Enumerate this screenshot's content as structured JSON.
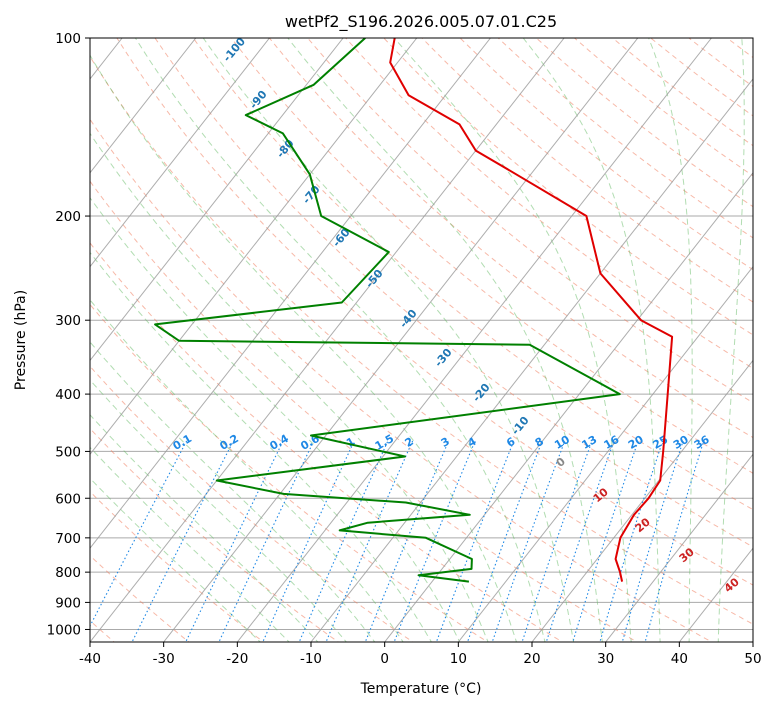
{
  "chart_data": {
    "type": "line",
    "title": "wetPf2_S196.2026.005.07.01.C25",
    "xlabel": "Temperature (°C)",
    "ylabel": "Pressure (hPa)",
    "xlim": [
      -40,
      50
    ],
    "ylim": [
      1050,
      100
    ],
    "x_ticks": [
      -40,
      -30,
      -20,
      -10,
      0,
      10,
      20,
      30,
      40,
      50
    ],
    "y_ticks": [
      100,
      200,
      300,
      400,
      500,
      600,
      700,
      800,
      900,
      1000
    ],
    "skew_factor": 0.785,
    "grid": true,
    "colors": {
      "temperature": "#e00000",
      "dewpoint": "#008000",
      "isotherm": "#999999",
      "isobar": "#aaaaaa",
      "dry_adiabat": "#f08060",
      "moist_adiabat": "#66bb66",
      "mixing_ratio": "#1e88e5",
      "isotherm_label": "#1f77b4",
      "wet_bulb_label": "#cc2222",
      "zero_label": "#888888"
    },
    "series": [
      {
        "name": "Temperature",
        "color": "#e00000",
        "points": [
          [
            25.8,
            830
          ],
          [
            24.5,
            800
          ],
          [
            22.5,
            760
          ],
          [
            20.9,
            700
          ],
          [
            20.5,
            660
          ],
          [
            20.3,
            640
          ],
          [
            20.5,
            600
          ],
          [
            20.2,
            560
          ],
          [
            17.5,
            500
          ],
          [
            12.0,
            400
          ],
          [
            6.5,
            320
          ],
          [
            0.5,
            300
          ],
          [
            -10.0,
            250
          ],
          [
            -18.0,
            200
          ],
          [
            -33.0,
            168
          ],
          [
            -40.0,
            155
          ],
          [
            -45.0,
            140
          ],
          [
            -55.0,
            125
          ],
          [
            -61.0,
            110
          ],
          [
            -63.0,
            100
          ]
        ]
      },
      {
        "name": "Dewpoint",
        "color": "#008000",
        "points": [
          [
            5.0,
            830
          ],
          [
            -2.5,
            810
          ],
          [
            4.0,
            790
          ],
          [
            3.0,
            760
          ],
          [
            -5.5,
            700
          ],
          [
            -18.0,
            680
          ],
          [
            -15.0,
            660
          ],
          [
            -2.0,
            640
          ],
          [
            -12.0,
            610
          ],
          [
            -29.5,
            590
          ],
          [
            -40.0,
            560
          ],
          [
            -17.0,
            510
          ],
          [
            -32.0,
            470
          ],
          [
            5.5,
            400
          ],
          [
            -12.0,
            330
          ],
          [
            -60.0,
            325
          ],
          [
            -65.0,
            305
          ],
          [
            -42.0,
            280
          ],
          [
            -41.0,
            230
          ],
          [
            -54.0,
            200
          ],
          [
            -60.0,
            170
          ],
          [
            -68.0,
            145
          ],
          [
            -75.0,
            135
          ],
          [
            -69.0,
            120
          ],
          [
            -67.0,
            100
          ]
        ]
      }
    ],
    "isotherm_labels": [
      {
        "text": "-100",
        "t": -100
      },
      {
        "text": "-90",
        "t": -90
      },
      {
        "text": "-80",
        "t": -80
      },
      {
        "text": "-70",
        "t": -70
      },
      {
        "text": "-60",
        "t": -60
      },
      {
        "text": "-50",
        "t": -50
      },
      {
        "text": "-40",
        "t": -40
      },
      {
        "text": "-30",
        "t": -30
      },
      {
        "text": "-20",
        "t": -20
      },
      {
        "text": "-10",
        "t": -10
      }
    ],
    "mixing_ratio_labels": [
      "0.1",
      "0.2",
      "0.4",
      "0.6",
      "1",
      "1.5",
      "2",
      "3",
      "4",
      "6",
      "8",
      "10",
      "13",
      "16",
      "20",
      "25",
      "30",
      "36"
    ],
    "wet_bulb_labels": [
      "0",
      "10",
      "20",
      "30",
      "40"
    ]
  }
}
